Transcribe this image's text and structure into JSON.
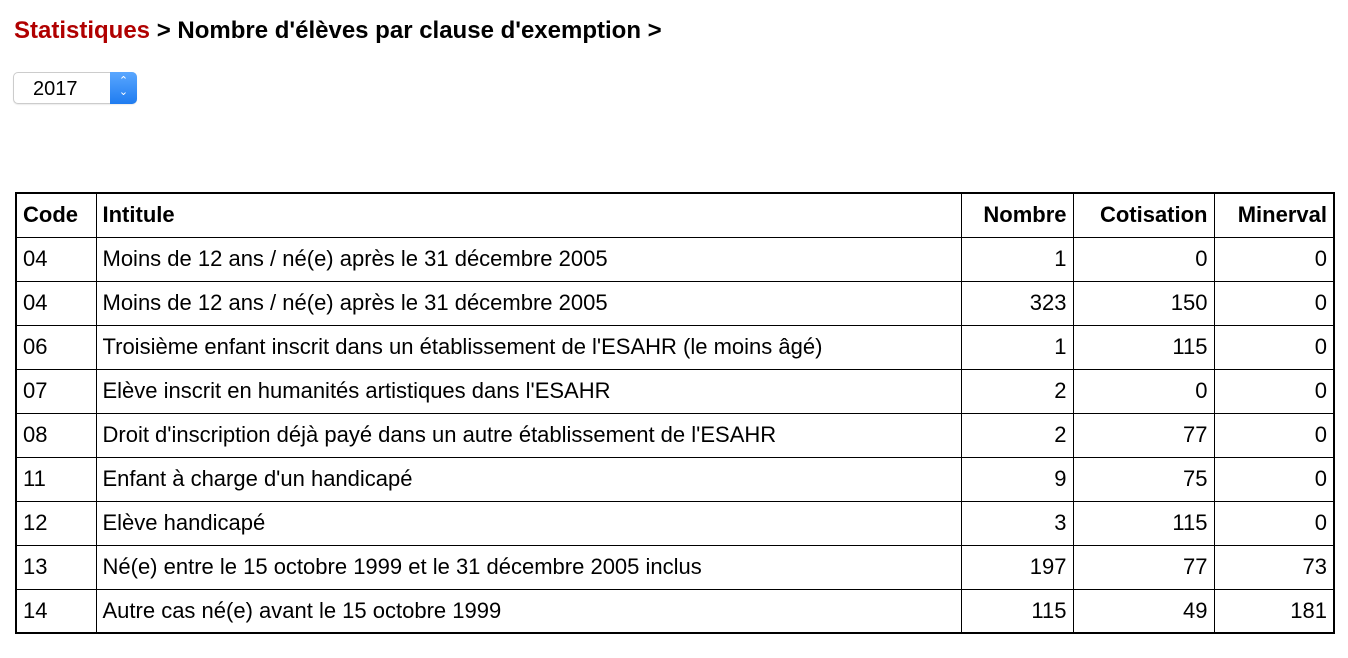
{
  "breadcrumb": {
    "link": "Statistiques",
    "separator": " > ",
    "current": "Nombre d'élèves par clause d'exemption",
    "trailing": " >",
    "link_color": "#b00000"
  },
  "year_select": {
    "value": "2017",
    "icon": "chevron-up-down-icon",
    "accent": "#1f7cf0"
  },
  "table": {
    "headers": [
      "Code",
      "Intitule",
      "Nombre",
      "Cotisation",
      "Minerval"
    ],
    "rows": [
      [
        "04",
        "Moins de 12 ans / né(e) après le 31 décembre 2005",
        "1",
        "0",
        "0"
      ],
      [
        "04",
        "Moins de 12 ans / né(e) après le 31 décembre 2005",
        "323",
        "150",
        "0"
      ],
      [
        "06",
        "Troisième enfant inscrit dans un établissement de l'ESAHR (le moins âgé)",
        "1",
        "115",
        "0"
      ],
      [
        "07",
        "Elève inscrit en humanités artistiques dans l'ESAHR",
        "2",
        "0",
        "0"
      ],
      [
        "08",
        "Droit d'inscription déjà payé dans un autre établissement de l'ESAHR",
        "2",
        "77",
        "0"
      ],
      [
        "11",
        "Enfant à charge d'un handicapé",
        "9",
        "75",
        "0"
      ],
      [
        "12",
        "Elève handicapé",
        "3",
        "115",
        "0"
      ],
      [
        "13",
        "Né(e) entre le 15 octobre 1999 et le 31 décembre 2005 inclus",
        "197",
        "77",
        "73"
      ],
      [
        "14",
        "Autre cas né(e) avant le 15 octobre 1999",
        "115",
        "49",
        "181"
      ]
    ]
  }
}
